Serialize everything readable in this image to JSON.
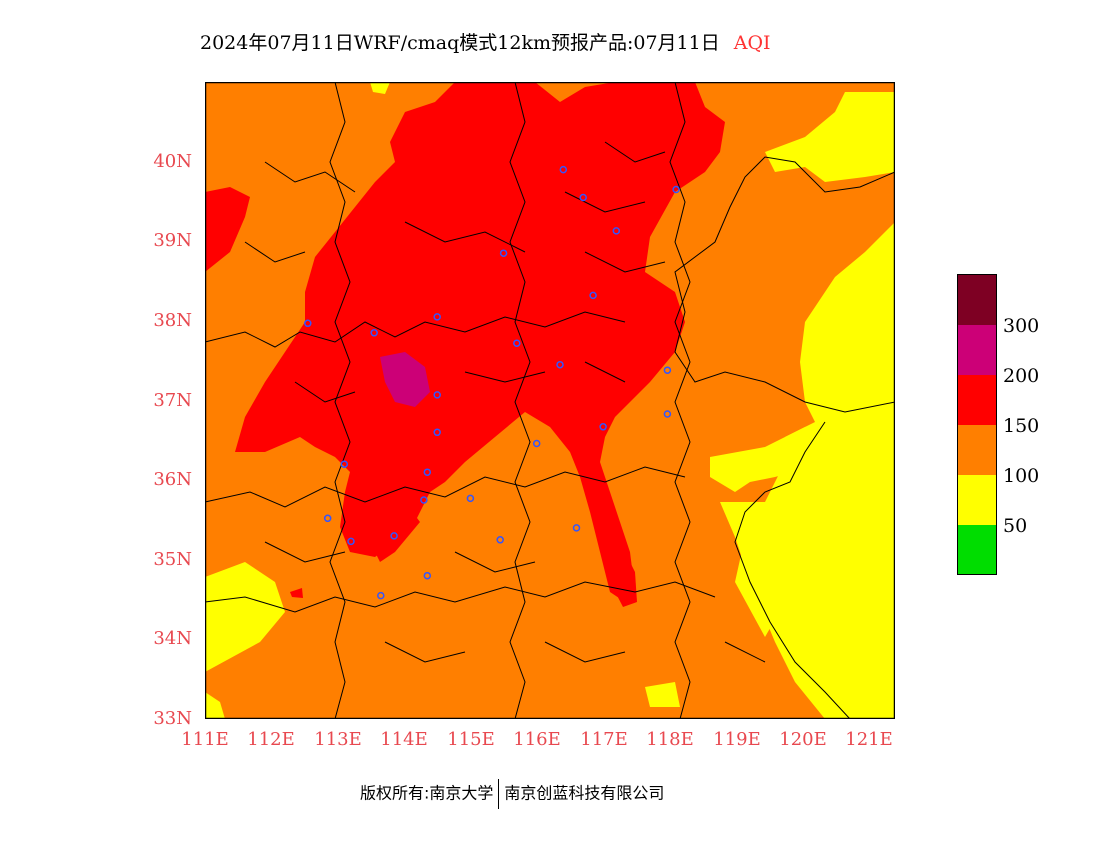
{
  "title": {
    "main": "2024年07月11日WRF/cmaq模式12km预报产品:07月11日",
    "product": "AQI"
  },
  "map": {
    "y_axis_labels": [
      "40N",
      "39N",
      "38N",
      "37N",
      "36N",
      "35N",
      "34N",
      "33N"
    ],
    "x_axis_labels": [
      "111E",
      "112E",
      "113E",
      "114E",
      "115E",
      "116E",
      "117E",
      "118E",
      "119E",
      "120E",
      "121E"
    ],
    "lat_range": [
      33,
      41
    ],
    "lon_range": [
      111,
      121.4
    ],
    "stations": [
      {
        "lon": 116.4,
        "lat": 39.9
      },
      {
        "lon": 116.7,
        "lat": 39.55
      },
      {
        "lon": 118.1,
        "lat": 39.65
      },
      {
        "lon": 117.2,
        "lat": 39.13
      },
      {
        "lon": 115.5,
        "lat": 38.85
      },
      {
        "lon": 116.85,
        "lat": 38.32
      },
      {
        "lon": 112.55,
        "lat": 37.97
      },
      {
        "lon": 113.55,
        "lat": 37.85
      },
      {
        "lon": 114.5,
        "lat": 38.05
      },
      {
        "lon": 115.7,
        "lat": 37.72
      },
      {
        "lon": 116.35,
        "lat": 37.45
      },
      {
        "lon": 114.5,
        "lat": 37.07
      },
      {
        "lon": 117.97,
        "lat": 37.38
      },
      {
        "lon": 114.5,
        "lat": 36.6
      },
      {
        "lon": 117.97,
        "lat": 36.83
      },
      {
        "lon": 117.0,
        "lat": 36.67
      },
      {
        "lon": 116.0,
        "lat": 36.46
      },
      {
        "lon": 113.1,
        "lat": 36.2
      },
      {
        "lon": 114.35,
        "lat": 36.1
      },
      {
        "lon": 114.3,
        "lat": 35.75
      },
      {
        "lon": 115.0,
        "lat": 35.77
      },
      {
        "lon": 112.85,
        "lat": 35.52
      },
      {
        "lon": 116.6,
        "lat": 35.4
      },
      {
        "lon": 113.2,
        "lat": 35.23
      },
      {
        "lon": 113.85,
        "lat": 35.3
      },
      {
        "lon": 115.45,
        "lat": 35.25
      },
      {
        "lon": 114.35,
        "lat": 34.8
      },
      {
        "lon": 113.65,
        "lat": 34.55
      }
    ]
  },
  "legend": {
    "colors": [
      "#00dd00",
      "#ffff00",
      "#ff7f00",
      "#ff0000",
      "#cc0077",
      "#7e0023"
    ],
    "labels": [
      "50",
      "100",
      "150",
      "200",
      "300"
    ]
  },
  "footer": {
    "left": "版权所有:南京大学",
    "right": "南京创蓝科技有限公司"
  }
}
